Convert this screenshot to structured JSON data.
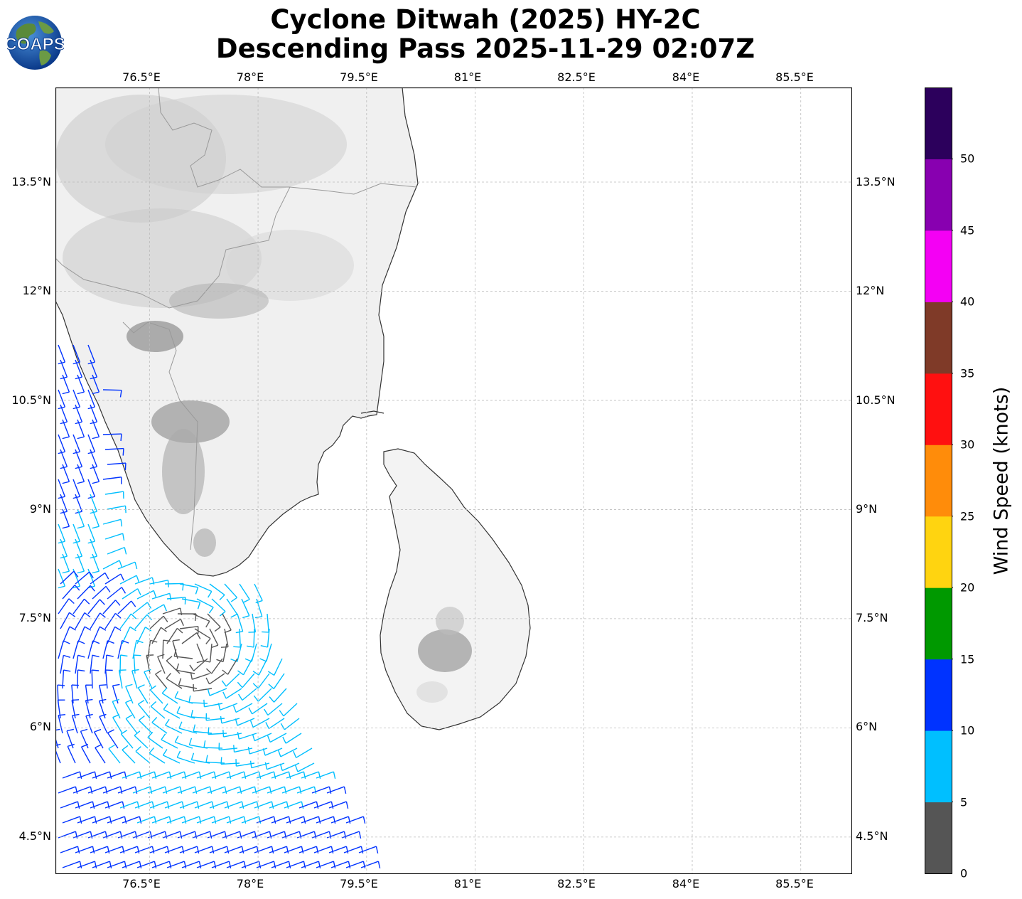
{
  "title": {
    "line1": "Cyclone Ditwah (2025) HY-2C",
    "line2": "Descending Pass 2025-11-29 02:07Z"
  },
  "logo": {
    "text": "COAPS",
    "icon": "globe-icon"
  },
  "map": {
    "lon_range": [
      75.2,
      86.2
    ],
    "lat_range": [
      4.0,
      14.8
    ],
    "lon_ticks": [
      "76.5°E",
      "78°E",
      "79.5°E",
      "81°E",
      "82.5°E",
      "84°E",
      "85.5°E"
    ],
    "lat_ticks": [
      "13.5°N",
      "12°N",
      "10.5°N",
      "9°N",
      "7.5°N",
      "6°N",
      "4.5°N"
    ],
    "grid": true,
    "colors": {
      "land": "#eeeeee",
      "coast": "#333333",
      "border": "#999999",
      "grid": "#bbbbbb",
      "ocean": "#ffffff"
    }
  },
  "colorbar": {
    "label": "Wind Speed (knots)",
    "ticks": [
      "0",
      "5",
      "10",
      "15",
      "20",
      "25",
      "30",
      "35",
      "40",
      "45",
      "50"
    ],
    "colors": [
      "#555555",
      "#00bfff",
      "#0033ff",
      "#009900",
      "#ffd410",
      "#ff8c0a",
      "#ff1010",
      "#7f3a28",
      "#f400f4",
      "#8800b0",
      "#2c005c"
    ],
    "bins": [
      [
        0,
        5
      ],
      [
        5,
        10
      ],
      [
        10,
        15
      ],
      [
        15,
        20
      ],
      [
        20,
        25
      ],
      [
        25,
        30
      ],
      [
        30,
        35
      ],
      [
        35,
        40
      ],
      [
        40,
        45
      ],
      [
        45,
        50
      ],
      [
        50,
        55
      ]
    ]
  }
}
